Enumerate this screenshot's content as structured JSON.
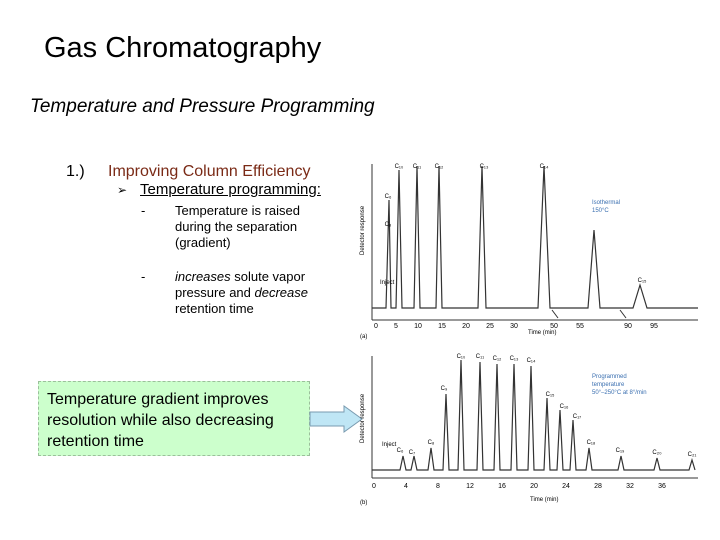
{
  "slide": {
    "title": "Gas Chromatography",
    "subtitle": "Temperature and Pressure Programming",
    "item_number": "1.)",
    "item_heading": "Improving Column Efficiency",
    "sub_heading": "Temperature programming:",
    "bullets": [
      {
        "dash": "-",
        "text": "Temperature is raised during the separation (gradient)"
      },
      {
        "dash": "-",
        "pre": "",
        "em1": "increases",
        "mid": " solute vapor pressure and ",
        "em2": "decrease",
        "post": " retention time"
      }
    ],
    "note": "Temperature gradient improves resolution while also decreasing retention time"
  },
  "figure_top": {
    "panel_label": "(a)",
    "y_axis_label": "Detector response",
    "x_axis_label": "Time (min)",
    "x_ticks": [
      "0",
      "5",
      "10",
      "15",
      "20",
      "25",
      "30",
      "50",
      "55",
      "90",
      "95"
    ],
    "inject_label": "Inject",
    "condition_lines": [
      "Isothermal",
      "150°C"
    ],
    "peak_labels": [
      "C₆",
      "C₈",
      "C₁₀",
      "C₁₁",
      "C₁₂",
      "C₁₃",
      "C₁₄",
      "C₁₅"
    ]
  },
  "figure_bottom": {
    "panel_label": "(b)",
    "y_axis_label": "Detector response",
    "x_axis_label": "Time (min)",
    "x_ticks": [
      "0",
      "4",
      "8",
      "12",
      "16",
      "20",
      "24",
      "28",
      "32",
      "36"
    ],
    "inject_label": "Inject",
    "condition_lines": [
      "Programmed",
      "temperature",
      "50°–250°C at 8°/min"
    ],
    "peak_labels": [
      "C₆",
      "C₇",
      "C₈",
      "C₉",
      "C₁₀",
      "C₁₁",
      "C₁₂",
      "C₁₃",
      "C₁₄",
      "C₁₅",
      "C₁₆",
      "C₁₇",
      "C₁₈",
      "C₁₉",
      "C₂₀",
      "C₂₁"
    ]
  },
  "colors": {
    "heading": "#7a2a16",
    "note_bg": "#ccffcc",
    "arrow_fill": "#bfe6f5",
    "chart_line": "#333333",
    "condition_text": "#3a6fb0"
  }
}
